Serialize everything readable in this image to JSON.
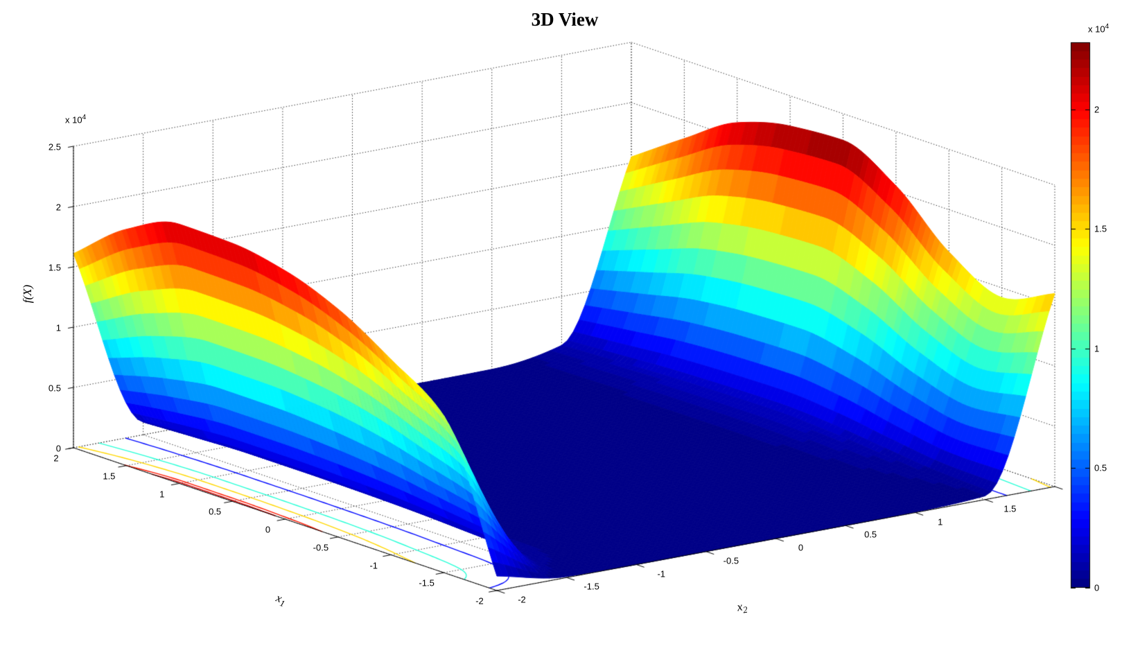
{
  "chart_data": {
    "type": "surface",
    "title": "3D View",
    "x1_label": {
      "base": "x",
      "sub": "1"
    },
    "x2_label": {
      "base": "x",
      "sub": "2"
    },
    "z_label": "f(X)",
    "exponent_label": {
      "text": "x 10",
      "power": "4"
    },
    "x1_tick_labels": [
      "2",
      "1.5",
      "1",
      "0.5",
      "0",
      "-0.5",
      "-1",
      "-1.5",
      "-2"
    ],
    "x2_tick_labels": [
      "-2",
      "-1.5",
      "-1",
      "-0.5",
      "0",
      "0.5",
      "1",
      "1.5"
    ],
    "x2_unlabeled_tick": "2",
    "z_tick_labels": [
      "0",
      "0.5",
      "1",
      "1.5",
      "2",
      "2.5"
    ],
    "colorbar_tick_labels": [
      "0",
      "0.5",
      "1",
      "1.5",
      "2"
    ],
    "tick_unit": 10000,
    "zlim": [
      0,
      25000
    ],
    "caxis": [
      0,
      22800
    ],
    "colormap": "jet",
    "grid": "dotted",
    "view": "MATLAB default 3D view (az -37.5, el 30), x1 axis direction reversed",
    "x1": [
      -2,
      -1.5,
      -1,
      -0.5,
      0,
      0.5,
      1,
      1.5,
      2
    ],
    "x2": [
      -2,
      -1.5,
      -1,
      -0.5,
      0,
      0.5,
      1,
      1.5,
      2
    ],
    "z_grid_rows_by_x2": [
      [
        1200,
        13000,
        16200,
        18900,
        20600,
        21400,
        21500,
        19600,
        16100
      ],
      [
        80,
        800,
        1050,
        1250,
        1350,
        1400,
        1400,
        1250,
        1050
      ],
      [
        0,
        30,
        40,
        50,
        55,
        55,
        55,
        50,
        40
      ],
      [
        0,
        0,
        0,
        0,
        0,
        0,
        0,
        0,
        0
      ],
      [
        0,
        0,
        0,
        0,
        0,
        0,
        0,
        0,
        0
      ],
      [
        0,
        0,
        0,
        0,
        0,
        0,
        0,
        0,
        0
      ],
      [
        40,
        35,
        40,
        50,
        60,
        60,
        55,
        45,
        40
      ],
      [
        300,
        500,
        900,
        1300,
        1500,
        1450,
        1350,
        1150,
        950
      ],
      [
        16000,
        14200,
        16500,
        20500,
        22800,
        22500,
        21300,
        18500,
        15500
      ]
    ],
    "contour_levels": [
      3000,
      9500,
      15000,
      19500,
      20800
    ],
    "colors": {
      "background": "#ffffff",
      "axis": "#000000",
      "grid_dot": "#2a2a2a",
      "surface_low": "#00008f",
      "surface_high": "#800000"
    }
  }
}
